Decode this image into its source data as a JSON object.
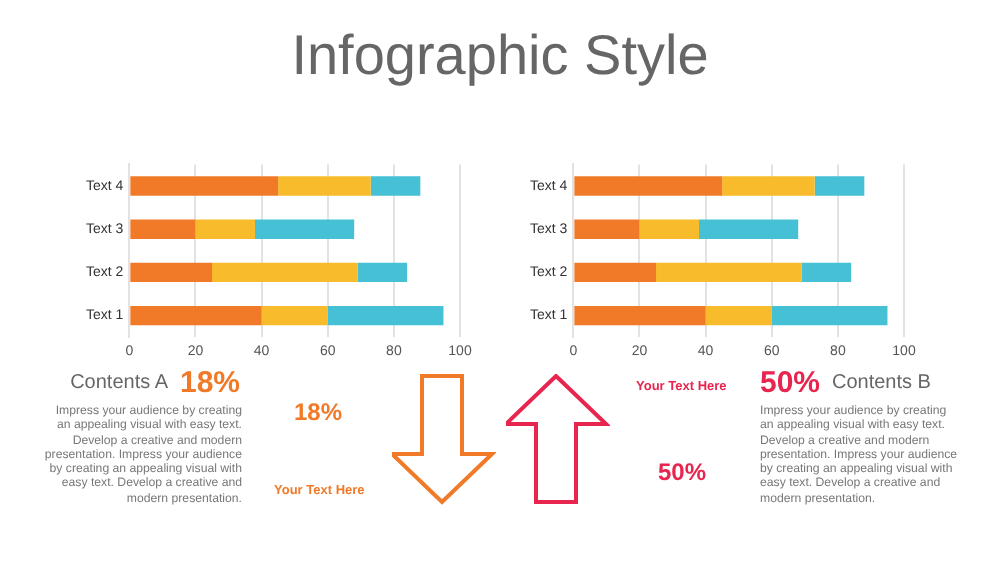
{
  "chart_data": [
    {
      "type": "bar",
      "orientation": "horizontal",
      "stacked": true,
      "categories": [
        "Text 4",
        "Text 3",
        "Text 2",
        "Text 1"
      ],
      "series": [
        {
          "color": "#f07a28",
          "values": [
            45,
            20,
            25,
            40
          ]
        },
        {
          "color": "#f7bb2b",
          "values": [
            28,
            18,
            44,
            20
          ]
        },
        {
          "color": "#45c0d4",
          "values": [
            15,
            30,
            15,
            35
          ]
        }
      ],
      "xlim": [
        0,
        100
      ],
      "xticks": [
        0,
        20,
        40,
        60,
        80,
        100
      ],
      "grid": "x",
      "legend": false
    },
    {
      "type": "bar",
      "orientation": "horizontal",
      "stacked": true,
      "categories": [
        "Text 4",
        "Text 3",
        "Text 2",
        "Text 1"
      ],
      "series": [
        {
          "color": "#f07a28",
          "values": [
            45,
            20,
            25,
            40
          ]
        },
        {
          "color": "#f7bb2b",
          "values": [
            28,
            18,
            44,
            20
          ]
        },
        {
          "color": "#45c0d4",
          "values": [
            15,
            30,
            15,
            35
          ]
        }
      ],
      "xlim": [
        0,
        100
      ],
      "xticks": [
        0,
        20,
        40,
        60,
        80,
        100
      ],
      "grid": "x",
      "legend": false
    },
    {
      "type": "other",
      "title": "Infographic Style",
      "annotations": [
        "Contents A",
        "18%",
        "Impress your audience by creating an appealing visual with easy text. Develop a creative and modern presentation. Impress your audience by creating an appealing visual with easy text. Develop a creative and modern presentation.",
        "18%",
        "Your Text  Here",
        "Your Text  Here",
        "50%",
        "Contents B",
        "Impress your audience by creating an appealing visual with easy text. Develop a creative and modern presentation. Impress your audience by creating an appealing visual with easy text. Develop a creative and modern presentation.",
        "50%"
      ]
    }
  ]
}
